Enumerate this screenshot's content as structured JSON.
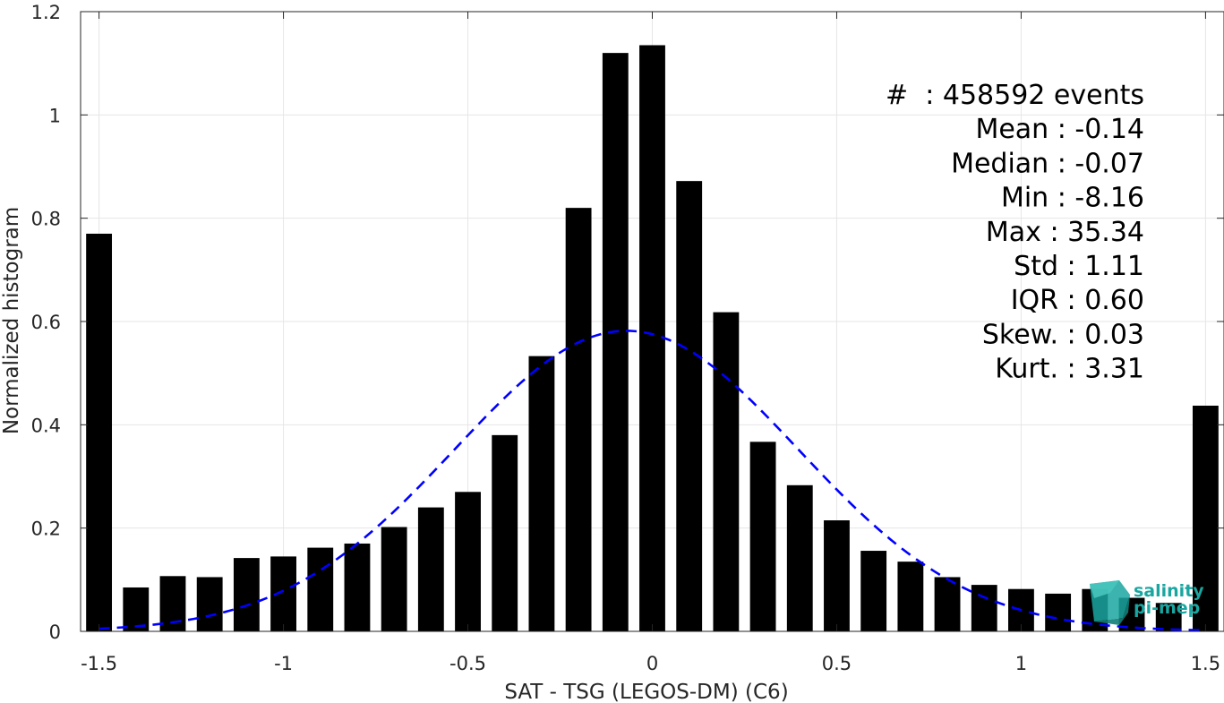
{
  "chart_data": {
    "type": "bar",
    "xlabel": "SAT - TSG (LEGOS-DM) (C6)",
    "ylabel": "Normalized histogram",
    "xlim": [
      -1.55,
      1.55
    ],
    "ylim": [
      0,
      1.2
    ],
    "xticks": [
      {
        "value": -1.5,
        "label": "-1.5"
      },
      {
        "value": -1.0,
        "label": "-1"
      },
      {
        "value": -0.5,
        "label": "-0.5"
      },
      {
        "value": 0.0,
        "label": "0"
      },
      {
        "value": 0.5,
        "label": "0.5"
      },
      {
        "value": 1.0,
        "label": "1"
      },
      {
        "value": 1.5,
        "label": "1.5"
      }
    ],
    "yticks": [
      {
        "value": 0,
        "label": "0"
      },
      {
        "value": 0.2,
        "label": "0.2"
      },
      {
        "value": 0.4,
        "label": "0.4"
      },
      {
        "value": 0.6,
        "label": "0.6"
      },
      {
        "value": 0.8,
        "label": "0.8"
      },
      {
        "value": 1.0,
        "label": "1"
      },
      {
        "value": 1.2,
        "label": "1.2"
      }
    ],
    "grid": true,
    "bar_width": 0.07,
    "bar_color": "#000000",
    "bins": [
      {
        "x": -1.5,
        "y": 0.77
      },
      {
        "x": -1.4,
        "y": 0.085
      },
      {
        "x": -1.3,
        "y": 0.107
      },
      {
        "x": -1.2,
        "y": 0.105
      },
      {
        "x": -1.1,
        "y": 0.142
      },
      {
        "x": -1.0,
        "y": 0.145
      },
      {
        "x": -0.9,
        "y": 0.162
      },
      {
        "x": -0.8,
        "y": 0.17
      },
      {
        "x": -0.7,
        "y": 0.202
      },
      {
        "x": -0.6,
        "y": 0.24
      },
      {
        "x": -0.5,
        "y": 0.27
      },
      {
        "x": -0.4,
        "y": 0.38
      },
      {
        "x": -0.3,
        "y": 0.533
      },
      {
        "x": -0.2,
        "y": 0.82
      },
      {
        "x": -0.1,
        "y": 1.12
      },
      {
        "x": 0.0,
        "y": 1.135
      },
      {
        "x": 0.1,
        "y": 0.872
      },
      {
        "x": 0.2,
        "y": 0.618
      },
      {
        "x": 0.3,
        "y": 0.367
      },
      {
        "x": 0.4,
        "y": 0.283
      },
      {
        "x": 0.5,
        "y": 0.215
      },
      {
        "x": 0.6,
        "y": 0.156
      },
      {
        "x": 0.7,
        "y": 0.135
      },
      {
        "x": 0.8,
        "y": 0.105
      },
      {
        "x": 0.9,
        "y": 0.09
      },
      {
        "x": 1.0,
        "y": 0.082
      },
      {
        "x": 1.1,
        "y": 0.073
      },
      {
        "x": 1.2,
        "y": 0.082
      },
      {
        "x": 1.3,
        "y": 0.065
      },
      {
        "x": 1.4,
        "y": 0.055
      },
      {
        "x": 1.5,
        "y": 0.437
      }
    ],
    "gaussian_fit": {
      "color": "#0000ff",
      "style": "dashed",
      "mean": -0.07,
      "peak": 0.582,
      "sigma": 0.465,
      "x_range": [
        -1.5,
        1.5
      ]
    },
    "stats": [
      "#  : 458592 events",
      "Mean : -0.14",
      "Median : -0.07",
      "Min : -8.16",
      "Max : 35.34",
      "Std : 1.11",
      "IQR : 0.60",
      "Skew. : 0.03",
      "Kurt. : 3.31"
    ],
    "logo": {
      "line1": "salinity",
      "line2": "pi-mep",
      "color": "#1aa6a0"
    }
  }
}
